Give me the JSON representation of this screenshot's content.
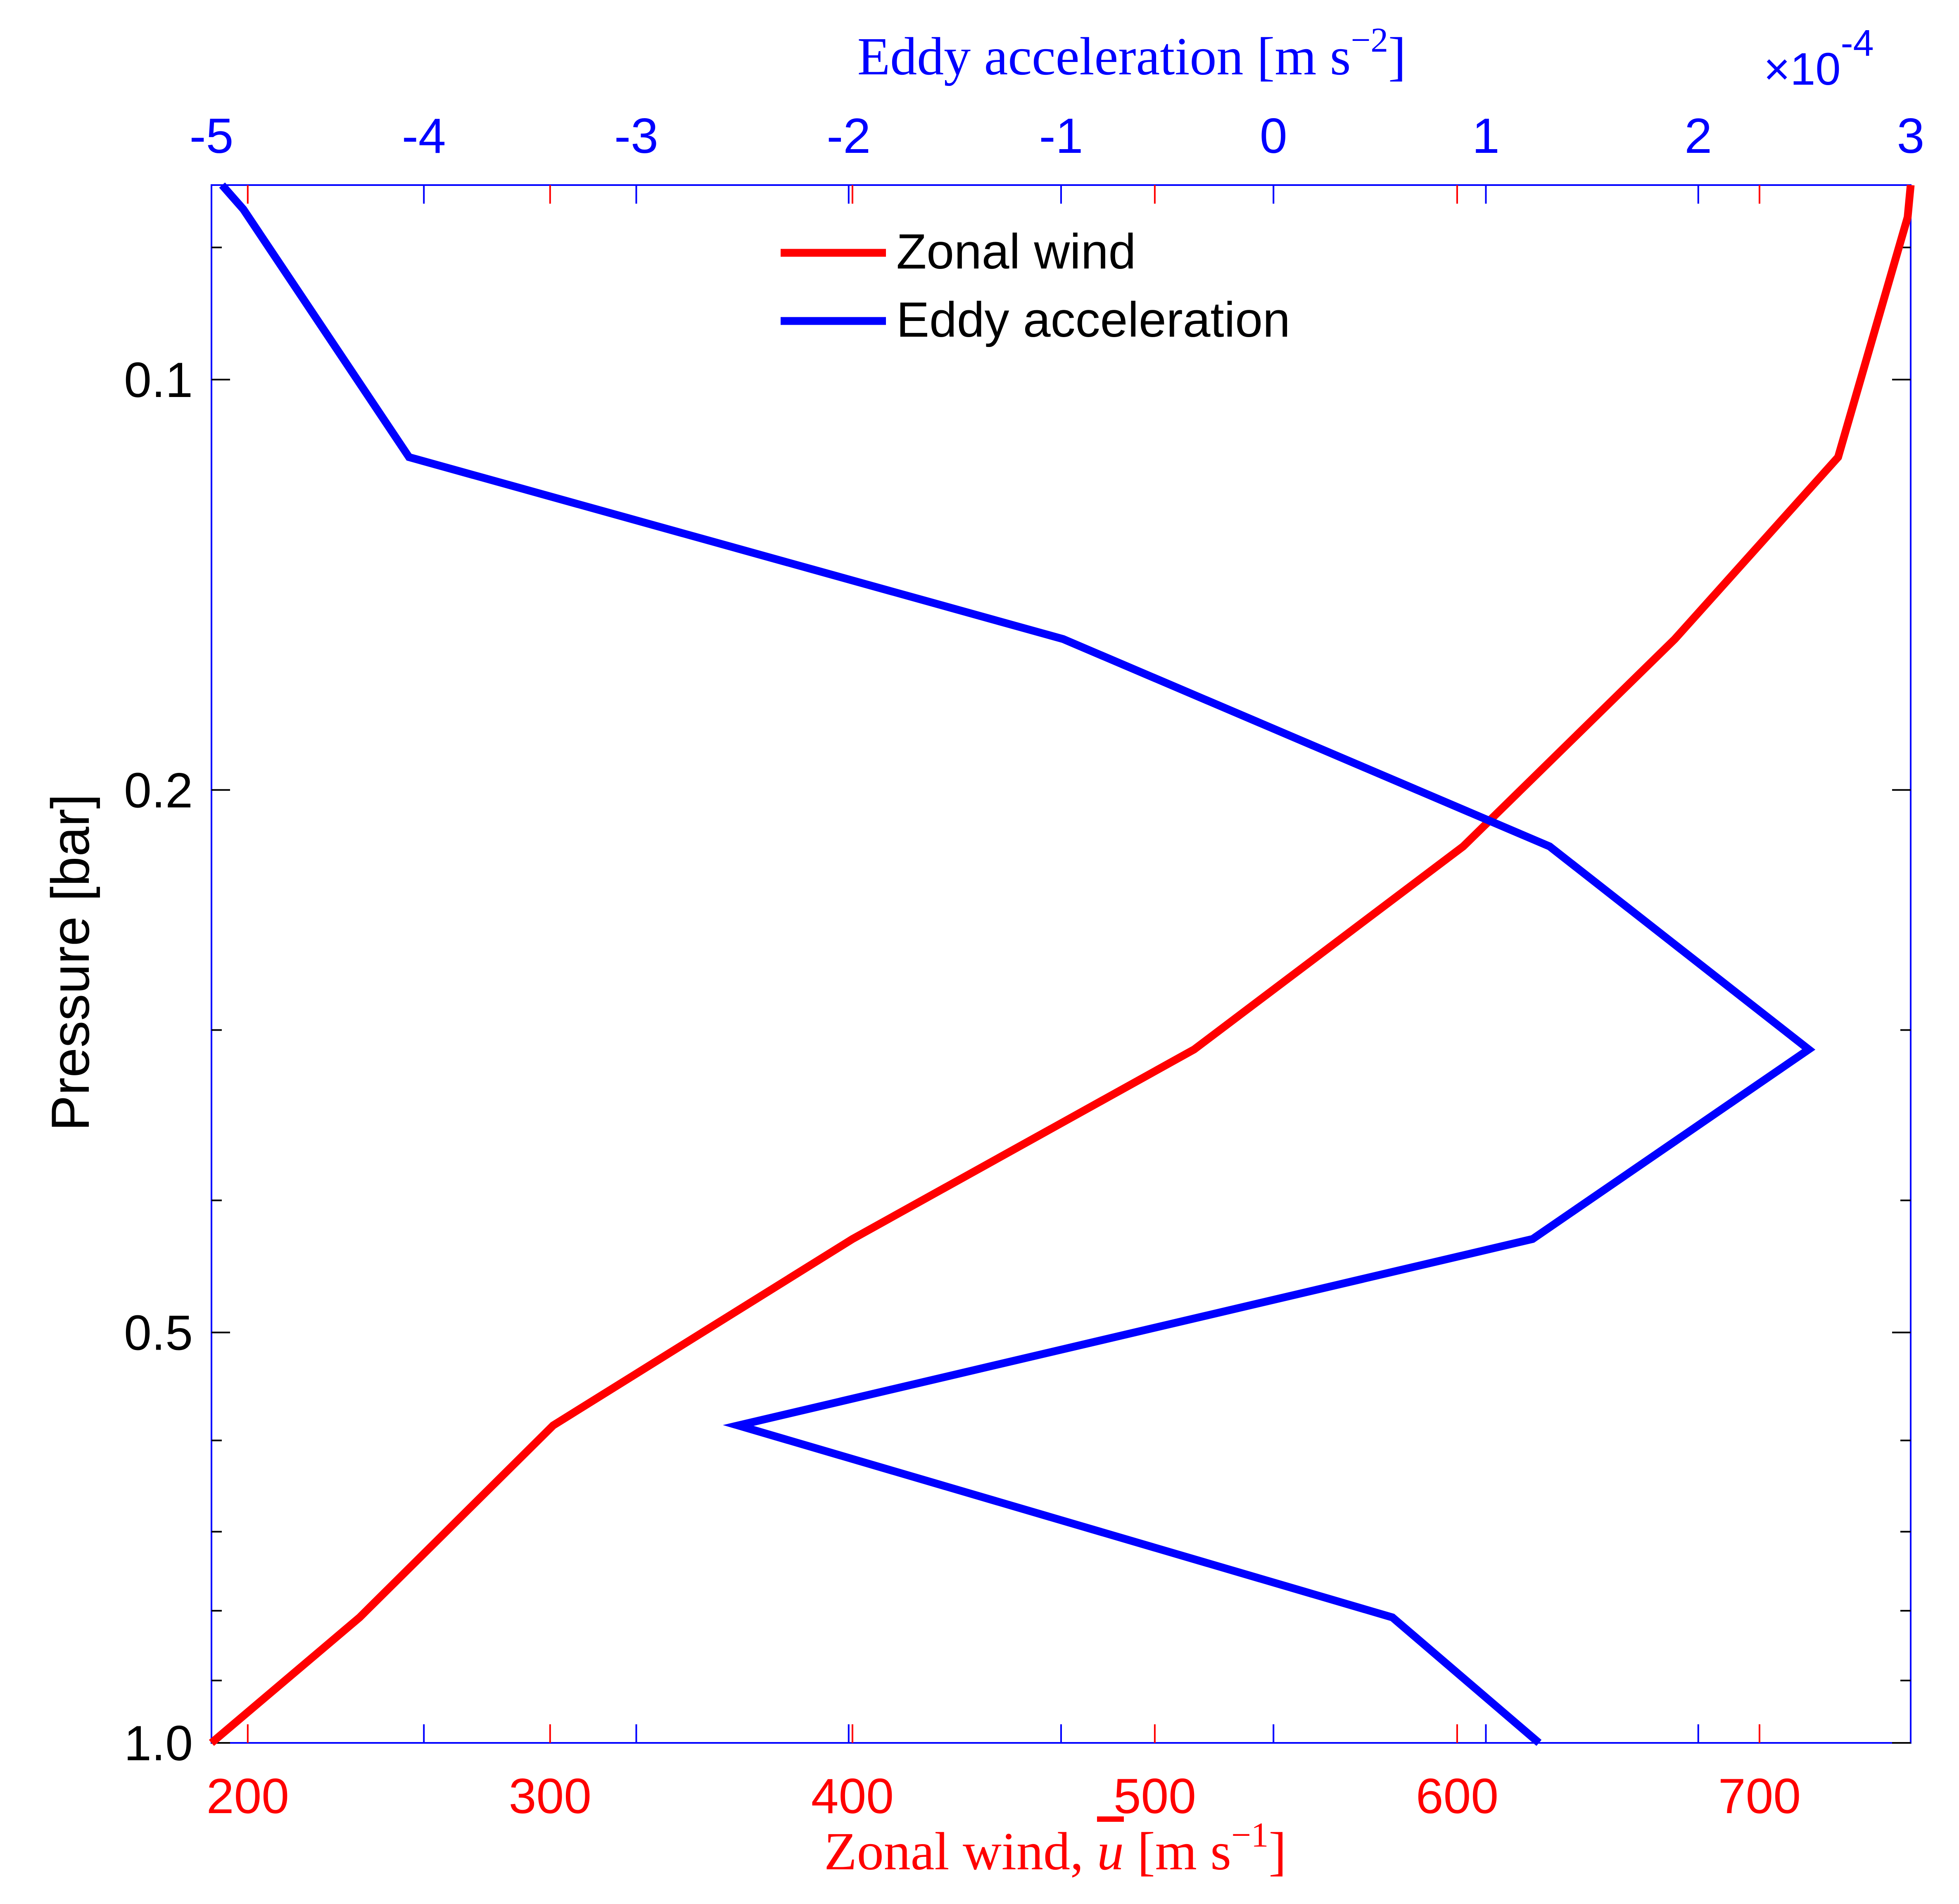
{
  "chart_data": {
    "type": "line",
    "title": "",
    "bottom_axis": {
      "label_prefix": "Zonal wind,",
      "label_symbol": "u",
      "label_units": "[m s",
      "label_exp": "−1",
      "label_close": "]",
      "range": [
        188,
        750
      ],
      "ticks": [
        200,
        300,
        400,
        500,
        600,
        700
      ],
      "color": "#ff0000"
    },
    "top_axis": {
      "label_main": "Eddy acceleration [m s",
      "label_exp": "−2",
      "label_close": "]",
      "scale_prefix": "×10",
      "scale_exp": "-4",
      "range": [
        -5,
        3
      ],
      "ticks": [
        -5,
        -4,
        -3,
        -2,
        -1,
        0,
        1,
        2,
        3
      ],
      "tick_labels": [
        "-5",
        "-4",
        "-3",
        "-2",
        "-1",
        "0",
        "1",
        "2",
        "3"
      ],
      "color": "#0000ff"
    },
    "y_axis": {
      "label": "Pressure [bar]",
      "scale": "log",
      "reversed": true,
      "range": [
        0.072,
        1.0
      ],
      "ticks": [
        0.1,
        0.2,
        0.5,
        1.0
      ],
      "tick_labels": [
        "0.1",
        "0.2",
        "0.5",
        "1.0"
      ],
      "minor_ticks": [
        0.08,
        0.3,
        0.4,
        0.6,
        0.7,
        0.8,
        0.9
      ]
    },
    "series": [
      {
        "name": "Zonal wind",
        "color": "#ff0000",
        "axis": "bottom",
        "points": [
          [
            750,
            0.072
          ],
          [
            749,
            0.076
          ],
          [
            726,
            0.114
          ],
          [
            672,
            0.155
          ],
          [
            602,
            0.22
          ],
          [
            513,
            0.31
          ],
          [
            400,
            0.427
          ],
          [
            301,
            0.585
          ],
          [
            237,
            0.809
          ],
          [
            188,
            1.0
          ]
        ]
      },
      {
        "name": "Eddy acceleration",
        "color": "#0000ff",
        "axis": "top",
        "points": [
          [
            -4.95,
            0.072
          ],
          [
            -4.85,
            0.075
          ],
          [
            -4.07,
            0.114
          ],
          [
            -0.99,
            0.155
          ],
          [
            1.3,
            0.22
          ],
          [
            2.52,
            0.31
          ],
          [
            1.22,
            0.427
          ],
          [
            -2.52,
            0.585
          ],
          [
            0.56,
            0.809
          ],
          [
            1.25,
            1.0
          ]
        ]
      }
    ],
    "legend": {
      "placement": "top-center",
      "entries": [
        "Zonal wind",
        "Eddy acceleration"
      ]
    }
  }
}
